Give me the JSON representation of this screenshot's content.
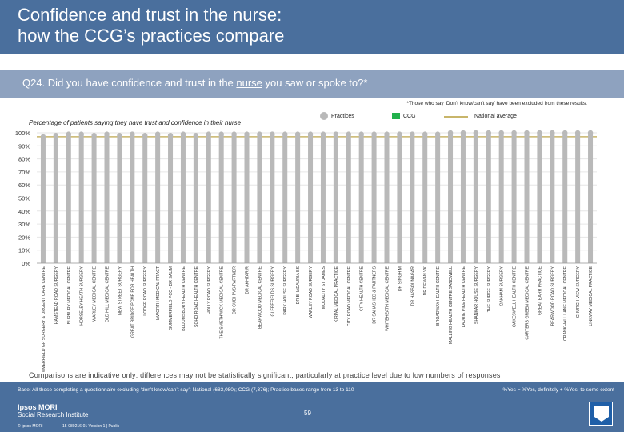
{
  "header": {
    "title_line1": "Confidence and trust in the nurse:",
    "title_line2": "how the CCG’s practices compare"
  },
  "question": {
    "prefix": "Q24. Did you have confidence and trust in the ",
    "underlined": "nurse",
    "suffix": " you saw or spoke to?*"
  },
  "note": "*Those who say ‘Don’t know/can’t say’ have been excluded from these results.",
  "chart_data": {
    "type": "bar",
    "title": "Percentage of patients saying they have trust and confidence in their nurse",
    "ylabel": "Percentage of patients saying they have trust and confidence in their nurse",
    "ylim": [
      0,
      100
    ],
    "yticks": [
      "0%",
      "10%",
      "20%",
      "30%",
      "40%",
      "50%",
      "60%",
      "70%",
      "80%",
      "90%",
      "100%"
    ],
    "legend": {
      "practices": "Practices",
      "ccg": "CCG",
      "national": "National average"
    },
    "categories": [
      "SUMMERFIELD GP SURGERY & URGENT CARE CENTRE",
      "HAMSTEAD ROAD SURGERY",
      "BURBURY MEDICAL CENTRE",
      "HORSELEY HEATH SURGERY",
      "WARLEY MEDICAL CENTRE",
      "OLD HILL MEDICAL CENTRE",
      "NEW STREET SURGERY",
      "GREAT BRIDGE PCMP FOR HEALTH",
      "LODGE ROAD SURGERY",
      "HAWORTH MEDICAL PRACT",
      "SUMMERFIELD PCC - DR SALIM",
      "BLOOMSBURY HEALTH CENTRE",
      "SOHO ROAD HEALTH CENTRE",
      "HOLLY ROAD SURGERY",
      "THE SMETHWICK MEDICAL CENTRE",
      "DR GUDI PVS-PARTNER",
      "DR AKHTAR R",
      "BEARWOOD MEDICAL CENTRE",
      "GLEBEFIELDS SURGERY",
      "PARK HOUSE SURGERY",
      "DR BHADAURIA BS",
      "WARLEY ROAD SURGERY",
      "MODALITY ST JAMES",
      "KIRPAL MEDICAL PRACTICE",
      "CITY ROAD MEDICAL CENTRE",
      "CITY HEALTH CENTRE",
      "DR SAHASHED & PARTNERS",
      "WHITEHEATH MEDICAL CENTRE",
      "DR SINGH M",
      "DR HASSOUNAGAR",
      "DR DEWAN VK",
      "BROADWAY HEALTH CENTRE",
      "MALLING HEALTH CENTRE SANDWELL",
      "LAURIE PIKE HEALTH CENTRE",
      "SHANKAR HOUSE SURGERY",
      "THE SURGE SURGERY",
      "OAKHAM SURGERY",
      "OAKESWELL HEALTH CENTRE",
      "CARTERS GREEN MEDICAL CENTRE",
      "GREAT BARR PRACTICE",
      "BEARWOOD ROAD SURGERY",
      "CRANKHALL LANE MEDICAL CENTRE",
      "CHURCH VIEW SURGERY",
      "LINKWAY MEDICAL PRACTICE"
    ],
    "values": [
      97,
      98,
      99,
      99,
      98,
      99,
      98,
      99,
      98,
      99,
      98,
      99,
      98,
      99,
      99,
      99,
      99,
      99,
      99,
      99,
      99,
      99,
      99,
      99,
      99,
      99,
      99,
      99,
      99,
      99,
      99,
      99,
      100,
      100,
      100,
      100,
      100,
      100,
      100,
      100,
      100,
      100,
      100,
      100
    ],
    "ccg_value": 96,
    "national_value": 97
  },
  "footer": {
    "comparisons": "Comparisons are indicative only: differences may not be statistically significant, particularly at practice level due to low numbers of responses",
    "base": "Base: All those completing a questionnaire excluding ‘don’t know/can’t say’: National (683,080); CCG (7,376); Practice bases range from 13 to 110",
    "yes_definition": "%Yes = %Yes, definitely + %Yes, to some extent",
    "page": "59",
    "logo_line1": "Ipsos MORI",
    "logo_line2": "Social Research Institute",
    "copyright": "© Ipsos MORI",
    "version": "15-080216-01 Version 1 | Public"
  }
}
